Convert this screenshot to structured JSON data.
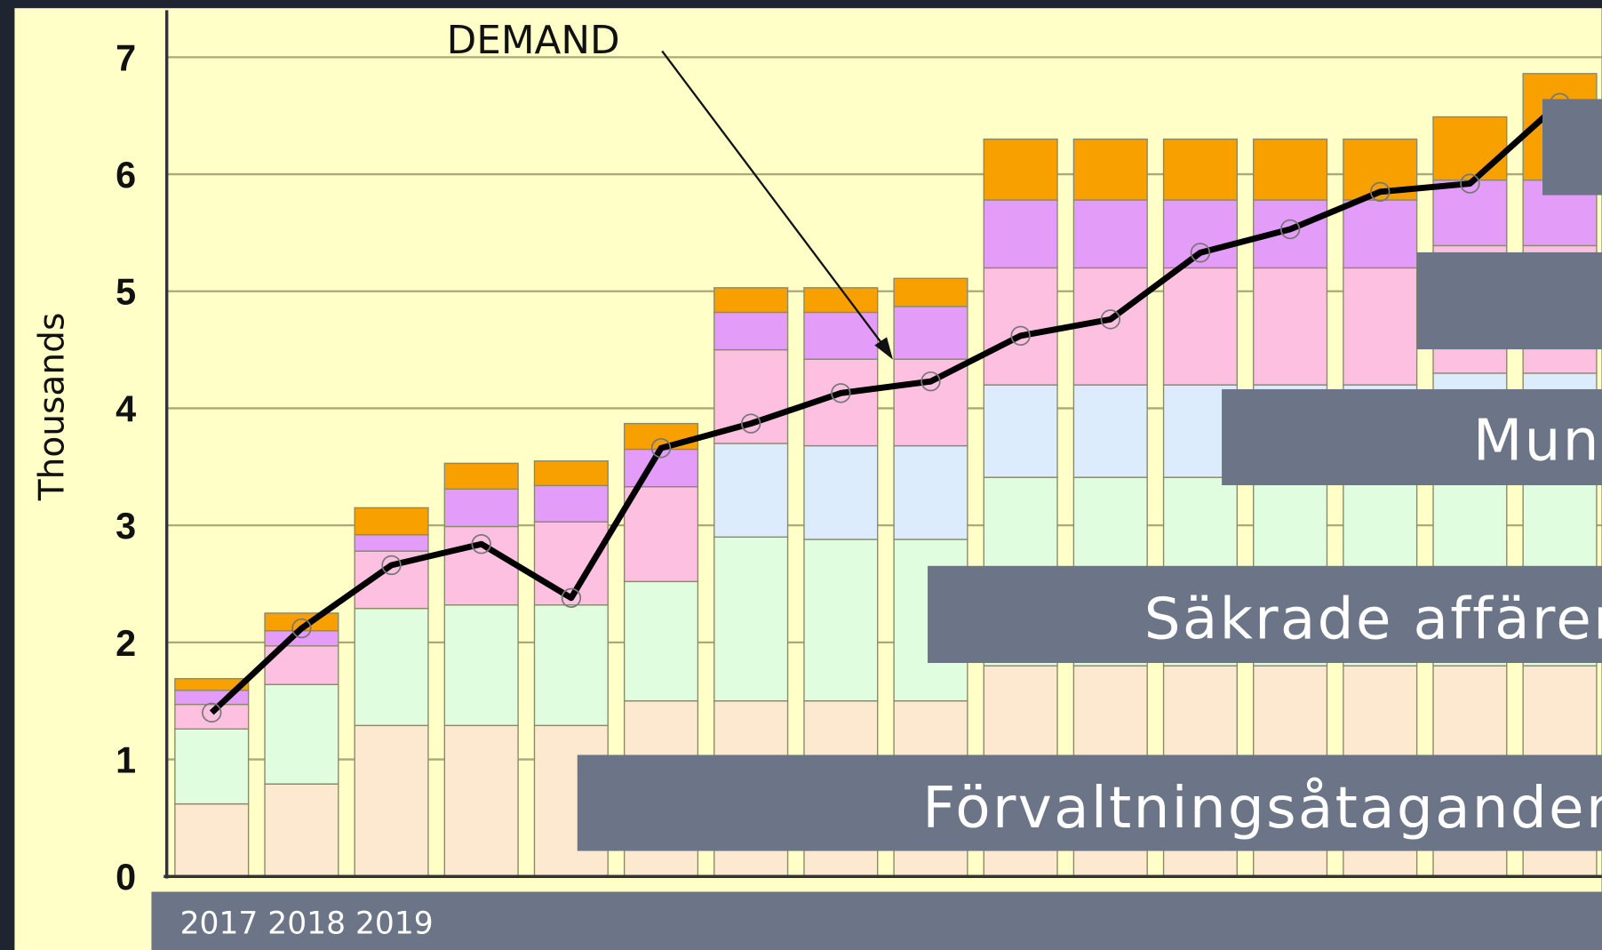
{
  "chart_data": {
    "type": "bar",
    "stacked": true,
    "ylabel": "Thousands",
    "ylim": [
      0,
      7
    ],
    "yticks": [
      0,
      1,
      2,
      3,
      4,
      5,
      6,
      7
    ],
    "grid": true,
    "categories": [
      null,
      null,
      null,
      null,
      null,
      null,
      null,
      null,
      null,
      null,
      null,
      null,
      null,
      null,
      null,
      null
    ],
    "series": [
      {
        "color": "#fde9cf",
        "values": [
          0.62,
          0.79,
          1.29,
          1.29,
          1.29,
          1.5,
          1.5,
          1.5,
          1.5,
          1.8,
          1.8,
          1.8,
          1.8,
          1.8,
          1.8,
          1.8
        ]
      },
      {
        "color": "#e0fde0",
        "values": [
          0.64,
          0.85,
          1.0,
          1.03,
          1.03,
          1.02,
          1.4,
          1.38,
          1.38,
          1.61,
          1.61,
          1.61,
          1.61,
          1.61,
          1.61,
          1.61
        ]
      },
      {
        "color": "#dcecfd",
        "values": [
          0,
          0,
          0,
          0,
          0,
          0,
          0.8,
          0.8,
          0.8,
          0.79,
          0.79,
          0.79,
          0.79,
          0.79,
          0.89,
          0.89
        ]
      },
      {
        "color": "#fdc0e0",
        "values": [
          0.21,
          0.33,
          0.49,
          0.67,
          0.71,
          0.81,
          0.8,
          0.74,
          0.74,
          1.0,
          1.0,
          1.0,
          1.0,
          1.0,
          1.09,
          1.09
        ]
      },
      {
        "color": "#e49cf9",
        "values": [
          0.12,
          0.13,
          0.14,
          0.32,
          0.31,
          0.32,
          0.32,
          0.4,
          0.45,
          0.58,
          0.58,
          0.58,
          0.58,
          0.58,
          0.56,
          0.56
        ]
      },
      {
        "color": "#f8a000",
        "values": [
          0.1,
          0.15,
          0.23,
          0.22,
          0.21,
          0.22,
          0.21,
          0.21,
          0.24,
          0.52,
          0.52,
          0.52,
          0.52,
          0.52,
          0.54,
          0.91
        ]
      }
    ],
    "line": {
      "label": "DEMAND",
      "color": "#000000",
      "values": [
        1.4,
        2.12,
        2.66,
        2.84,
        2.38,
        3.66,
        3.87,
        4.13,
        4.23,
        4.62,
        4.76,
        5.33,
        5.53,
        5.85,
        5.92,
        6.61
      ]
    }
  },
  "overlays": [
    "Förvaltningsåtaganden",
    "Säkrade affärer",
    "Mun"
  ],
  "footer": "2017 2018 2019"
}
